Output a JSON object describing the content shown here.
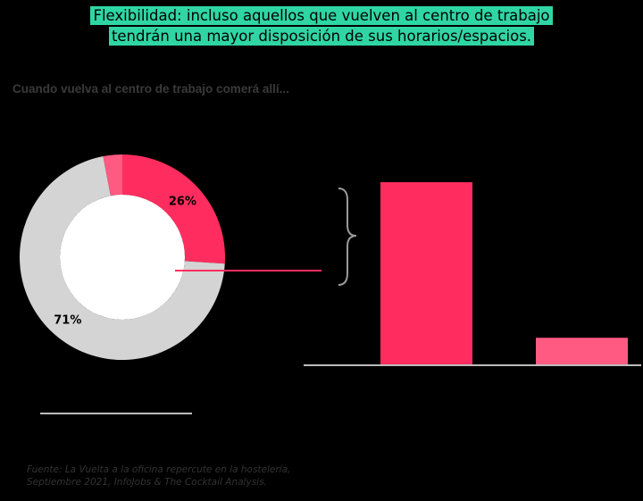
{
  "headline": {
    "line1": "Flexibilidad: incluso aquellos que vuelven al centro de trabajo",
    "line2": "tendrán una mayor disposición de sus horarios/espacios."
  },
  "subtitle": "Cuando vuelva al centro de trabajo comerá allí...",
  "source": {
    "line1": "Fuente: La Vuelta a la oficina repercute en la hostelería,",
    "line2": "Septiembre 2021, InfoJobs & The Cocktail Analysis."
  },
  "colors": {
    "background": "#000000",
    "headline_bg": "#2fd6a3",
    "accent": "#ff2d5f",
    "accent_light": "#ff5a82",
    "donut_gray": "#d4d4d4",
    "rule": "#bcbcbc"
  },
  "chart_data": [
    {
      "type": "pie",
      "variant": "donut",
      "slices": [
        {
          "label": "26%",
          "value": 26,
          "color": "#ff2d5f"
        },
        {
          "label": "71%",
          "value": 71,
          "color": "#d4d4d4"
        },
        {
          "label": "",
          "value": 3,
          "color": "#ff5a82"
        }
      ]
    },
    {
      "type": "bar",
      "categories": [
        "",
        ""
      ],
      "values": [
        20,
        3
      ],
      "colors": [
        "#ff2d5f",
        "#ff5a82"
      ]
    }
  ]
}
